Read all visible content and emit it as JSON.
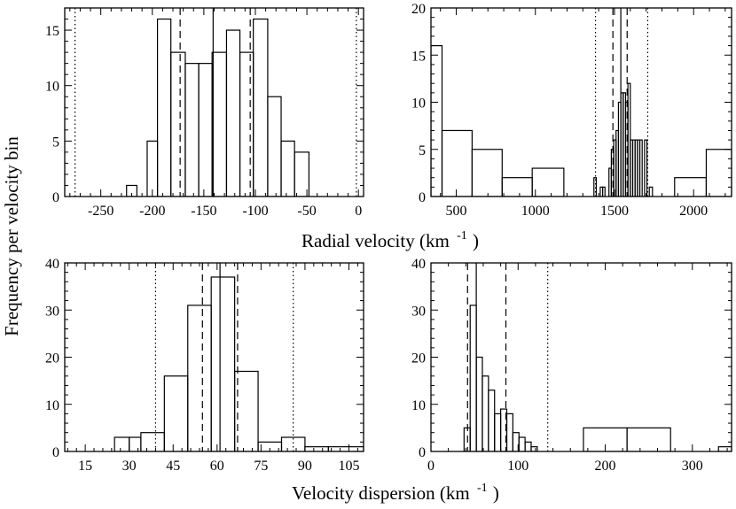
{
  "figure": {
    "ylabel": "Frequency per velocity bin",
    "top_xlabel": "Radial velocity (km",
    "top_xlabel_sup": "-1",
    "top_xlabel_close": ")",
    "bottom_xlabel": "Velocity dispersion (km",
    "bottom_xlabel_sup": "-1",
    "bottom_xlabel_close": ")"
  },
  "chart_data": [
    {
      "type": "bar",
      "panel": "top-left",
      "xlim": [
        -285,
        5
      ],
      "ylim": [
        0,
        17
      ],
      "xticks": [
        -250,
        -200,
        -150,
        -100,
        -50,
        0
      ],
      "yticks": [
        0,
        5,
        10,
        15
      ],
      "bins": [
        {
          "x0": -225,
          "x1": -215,
          "count": 1
        },
        {
          "x0": -205,
          "x1": -195,
          "count": 5
        },
        {
          "x0": -195,
          "x1": -182,
          "count": 16
        },
        {
          "x0": -182,
          "x1": -168,
          "count": 13
        },
        {
          "x0": -168,
          "x1": -155,
          "count": 12
        },
        {
          "x0": -155,
          "x1": -142,
          "count": 12
        },
        {
          "x0": -142,
          "x1": -128,
          "count": 13
        },
        {
          "x0": -128,
          "x1": -115,
          "count": 15
        },
        {
          "x0": -115,
          "x1": -102,
          "count": 13
        },
        {
          "x0": -102,
          "x1": -88,
          "count": 16
        },
        {
          "x0": -88,
          "x1": -75,
          "count": 9
        },
        {
          "x0": -75,
          "x1": -62,
          "count": 5
        },
        {
          "x0": -62,
          "x1": -48,
          "count": 4
        }
      ],
      "lines": [
        {
          "x": -141,
          "style": "solid"
        },
        {
          "x": -173,
          "style": "dashed"
        },
        {
          "x": -105,
          "style": "dashed"
        },
        {
          "x": -275,
          "style": "dotted"
        },
        {
          "x": -2,
          "style": "dotted"
        }
      ]
    },
    {
      "type": "bar",
      "panel": "top-right",
      "xlim": [
        340,
        2240
      ],
      "ylim": [
        0,
        20
      ],
      "xticks": [
        500,
        1000,
        1500,
        2000
      ],
      "yticks": [
        0,
        5,
        10,
        15,
        20
      ],
      "bins": [
        {
          "x0": 340,
          "x1": 410,
          "count": 16
        },
        {
          "x0": 410,
          "x1": 600,
          "count": 7
        },
        {
          "x0": 600,
          "x1": 790,
          "count": 5
        },
        {
          "x0": 790,
          "x1": 980,
          "count": 2
        },
        {
          "x0": 980,
          "x1": 1180,
          "count": 3
        },
        {
          "x0": 1370,
          "x1": 1385,
          "count": 2
        },
        {
          "x0": 1410,
          "x1": 1425,
          "count": 1
        },
        {
          "x0": 1425,
          "x1": 1440,
          "count": 1
        },
        {
          "x0": 1465,
          "x1": 1480,
          "count": 3
        },
        {
          "x0": 1480,
          "x1": 1495,
          "count": 5
        },
        {
          "x0": 1495,
          "x1": 1510,
          "count": 6
        },
        {
          "x0": 1510,
          "x1": 1525,
          "count": 7
        },
        {
          "x0": 1525,
          "x1": 1540,
          "count": 10
        },
        {
          "x0": 1540,
          "x1": 1555,
          "count": 11
        },
        {
          "x0": 1555,
          "x1": 1570,
          "count": 11
        },
        {
          "x0": 1570,
          "x1": 1585,
          "count": 10
        },
        {
          "x0": 1585,
          "x1": 1600,
          "count": 12
        },
        {
          "x0": 1600,
          "x1": 1615,
          "count": 6
        },
        {
          "x0": 1615,
          "x1": 1630,
          "count": 6
        },
        {
          "x0": 1630,
          "x1": 1645,
          "count": 6
        },
        {
          "x0": 1645,
          "x1": 1660,
          "count": 6
        },
        {
          "x0": 1660,
          "x1": 1675,
          "count": 6
        },
        {
          "x0": 1690,
          "x1": 1705,
          "count": 6
        },
        {
          "x0": 1720,
          "x1": 1740,
          "count": 1
        },
        {
          "x0": 1880,
          "x1": 2080,
          "count": 2
        },
        {
          "x0": 2080,
          "x1": 2240,
          "count": 5
        }
      ],
      "lines": [
        {
          "x": 1540,
          "style": "solid"
        },
        {
          "x": 1490,
          "style": "dashed"
        },
        {
          "x": 1580,
          "style": "dashed"
        },
        {
          "x": 1380,
          "style": "dotted"
        },
        {
          "x": 1710,
          "style": "dotted"
        }
      ]
    },
    {
      "type": "bar",
      "panel": "bottom-left",
      "xlim": [
        8,
        110
      ],
      "ylim": [
        0,
        40
      ],
      "xticks": [
        15,
        30,
        45,
        60,
        75,
        90,
        105
      ],
      "yticks": [
        0,
        10,
        20,
        30,
        40
      ],
      "bins": [
        {
          "x0": 25,
          "x1": 30,
          "count": 3
        },
        {
          "x0": 30,
          "x1": 34,
          "count": 3
        },
        {
          "x0": 34,
          "x1": 42,
          "count": 4
        },
        {
          "x0": 42,
          "x1": 50,
          "count": 16
        },
        {
          "x0": 50,
          "x1": 58,
          "count": 31
        },
        {
          "x0": 58,
          "x1": 66,
          "count": 37
        },
        {
          "x0": 66,
          "x1": 74,
          "count": 17
        },
        {
          "x0": 74,
          "x1": 82,
          "count": 2
        },
        {
          "x0": 82,
          "x1": 90,
          "count": 3
        },
        {
          "x0": 90,
          "x1": 98,
          "count": 1
        },
        {
          "x0": 98,
          "x1": 110,
          "count": 1
        }
      ],
      "lines": [
        {
          "x": 61,
          "style": "solid"
        },
        {
          "x": 55,
          "style": "dashed"
        },
        {
          "x": 67,
          "style": "dashed"
        },
        {
          "x": 39,
          "style": "dotted"
        },
        {
          "x": 86,
          "style": "dotted"
        }
      ]
    },
    {
      "type": "bar",
      "panel": "bottom-right",
      "xlim": [
        0,
        345
      ],
      "ylim": [
        0,
        40
      ],
      "xticks": [
        0,
        100,
        200,
        300
      ],
      "yticks": [
        0,
        10,
        20,
        30,
        40
      ],
      "bins": [
        {
          "x0": 38,
          "x1": 45,
          "count": 5
        },
        {
          "x0": 45,
          "x1": 52,
          "count": 31
        },
        {
          "x0": 52,
          "x1": 59,
          "count": 20
        },
        {
          "x0": 59,
          "x1": 66,
          "count": 16
        },
        {
          "x0": 66,
          "x1": 73,
          "count": 13
        },
        {
          "x0": 73,
          "x1": 80,
          "count": 8
        },
        {
          "x0": 80,
          "x1": 87,
          "count": 9
        },
        {
          "x0": 87,
          "x1": 94,
          "count": 8
        },
        {
          "x0": 94,
          "x1": 101,
          "count": 4
        },
        {
          "x0": 101,
          "x1": 108,
          "count": 3
        },
        {
          "x0": 108,
          "x1": 115,
          "count": 2
        },
        {
          "x0": 115,
          "x1": 122,
          "count": 1
        },
        {
          "x0": 175,
          "x1": 225,
          "count": 5
        },
        {
          "x0": 225,
          "x1": 275,
          "count": 5
        },
        {
          "x0": 330,
          "x1": 345,
          "count": 1
        }
      ],
      "lines": [
        {
          "x": 52,
          "style": "solid"
        },
        {
          "x": 42,
          "style": "dashed"
        },
        {
          "x": 86,
          "style": "dashed"
        },
        {
          "x": 134,
          "style": "dotted"
        }
      ]
    }
  ]
}
